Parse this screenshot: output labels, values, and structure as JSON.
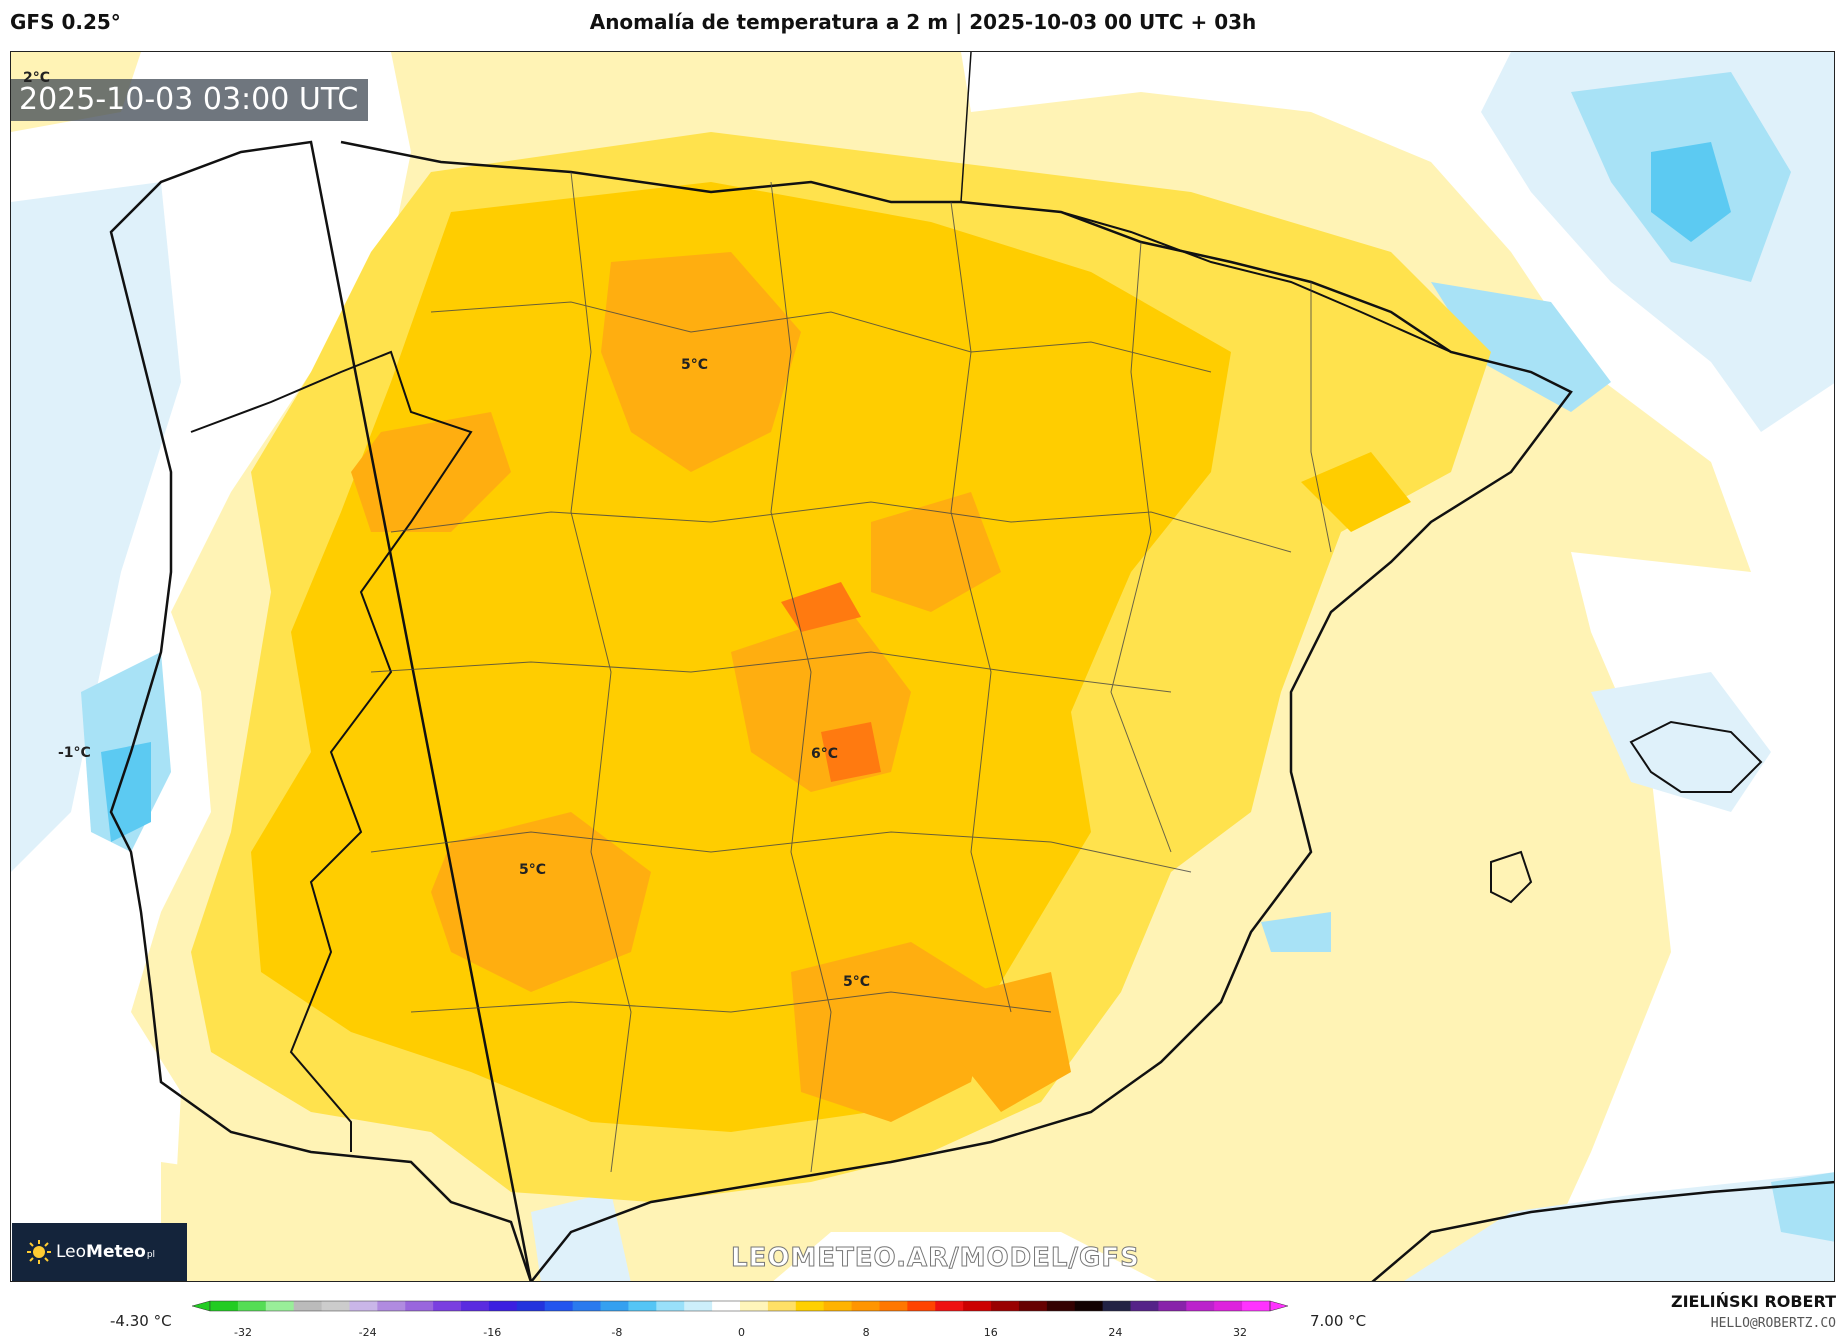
{
  "header": {
    "model": "GFS 0.25°",
    "title": "Anomalía de temperatura a 2 m | 2025-10-03 00 UTC + 03h"
  },
  "map": {
    "valid_time": "2025-10-03 03:00 UTC",
    "region": "Iberian Peninsula",
    "variable": "2 m temperature anomaly",
    "labels": [
      {
        "text": "2°C"
      },
      {
        "text": "5°C"
      },
      {
        "text": "-1°C"
      },
      {
        "text": "6°C"
      },
      {
        "text": "5°C"
      },
      {
        "text": "5°C"
      }
    ],
    "watermark": "LEOMETEO.AR/MODEL/GFS",
    "logo": {
      "part1": "Leo",
      "part2": "Meteo",
      "suffix": "pl",
      "icon": "sun-icon"
    }
  },
  "colorbar": {
    "min_label": "-4.30 °C",
    "max_label": "7.00 °C",
    "ticks": [
      "-32",
      "-24",
      "-16",
      "-8",
      "0",
      "8",
      "16",
      "24",
      "32"
    ],
    "colors": [
      "#22cc22",
      "#55dd55",
      "#99ee99",
      "#bbbbbb",
      "#cccccc",
      "#c9b6e8",
      "#b08be0",
      "#9966dd",
      "#7a3fe0",
      "#5a2be0",
      "#3b1fe0",
      "#2233dd",
      "#2255ee",
      "#2a7aee",
      "#35a0f0",
      "#55c5f5",
      "#99e0fa",
      "#cdeffb",
      "#ffffff",
      "#fff5bb",
      "#ffe066",
      "#ffd000",
      "#ffb300",
      "#ff9500",
      "#ff7700",
      "#ff4400",
      "#ee1111",
      "#cc0000",
      "#990000",
      "#660000",
      "#330000",
      "#110000",
      "#222244",
      "#552288",
      "#8822aa",
      "#bb22cc",
      "#dd22dd",
      "#ff33ff"
    ]
  },
  "footer": {
    "author": "ZIELIŃSKI ROBERT",
    "email": "HELLO@ROBERTZ.CO"
  },
  "colors": {
    "warm1": "#fff2b0",
    "warm2": "#ffe24d",
    "warm3": "#ffcd00",
    "warm4": "#ffae10",
    "warm5": "#ff7a10",
    "cold1": "#dff1fa",
    "cold2": "#a8e2f6",
    "cold3": "#5ccaf2"
  }
}
